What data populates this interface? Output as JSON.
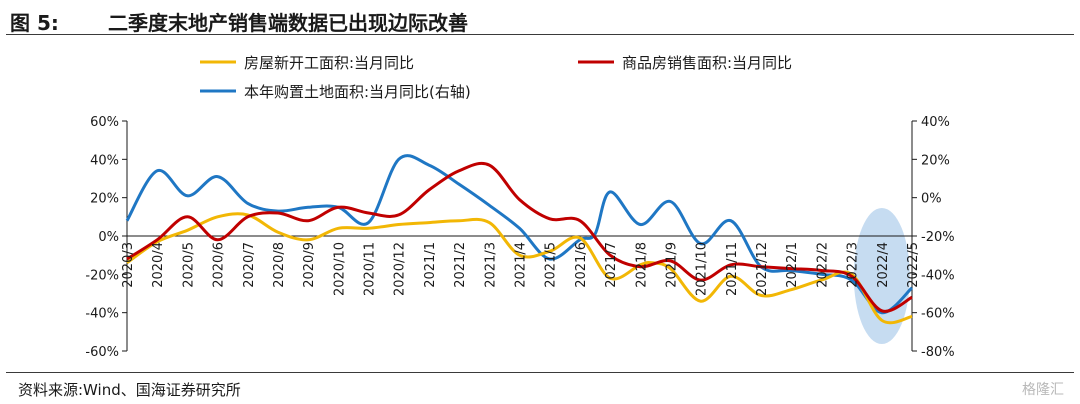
{
  "header": {
    "figure_label": "图 5:",
    "figure_title": "二季度末地产销售端数据已出现边际改善"
  },
  "footer": {
    "source": "资料来源:Wind、国海证券研究所",
    "watermark": "格隆汇"
  },
  "chart_data": {
    "type": "line",
    "categories": [
      "2020/3",
      "2020/4",
      "2020/5",
      "2020/6",
      "2020/7",
      "2020/8",
      "2020/9",
      "2020/10",
      "2020/11",
      "2020/12",
      "2021/1",
      "2021/2",
      "2021/3",
      "2021/4",
      "2021/5",
      "2021/6",
      "2021/7",
      "2021/8",
      "2021/9",
      "2021/10",
      "2021/11",
      "2021/12",
      "2022/1",
      "2022/2",
      "2022/3",
      "2022/4",
      "2022/5"
    ],
    "left_axis": {
      "min": -60,
      "max": 60,
      "step": 20,
      "unit": "%"
    },
    "right_axis": {
      "min": -80,
      "max": 40,
      "step": 20,
      "unit": "%"
    },
    "legend": [
      {
        "name": "房屋新开工面积:当月同比",
        "color": "#f2b705"
      },
      {
        "name": "商品房销售面积:当月同比",
        "color": "#c00000"
      },
      {
        "name": "本年购置土地面积:当月同比(右轴)",
        "color": "#1f77c4"
      }
    ],
    "series": [
      {
        "name": "房屋新开工面积:当月同比",
        "color": "#f2b705",
        "axis": "left",
        "x": [
          0,
          1,
          2,
          3,
          4,
          5,
          6,
          7,
          8,
          9,
          10,
          11,
          12,
          13,
          14,
          15,
          16,
          17,
          17.4,
          18,
          19,
          20,
          21,
          22,
          23,
          24,
          25,
          26
        ],
        "values": [
          -14,
          -3,
          3,
          10,
          11,
          2,
          -2,
          4,
          4,
          6,
          7,
          8,
          7,
          -10,
          -8,
          -1,
          -22,
          -15,
          -14,
          -17,
          -34,
          -21,
          -31,
          -28,
          -23,
          -20,
          -44,
          -42
        ]
      },
      {
        "name": "商品房销售面积:当月同比",
        "color": "#c00000",
        "axis": "left",
        "x": [
          0,
          1,
          2,
          3,
          4,
          5,
          6,
          7,
          8,
          9,
          10,
          11,
          12,
          13,
          14,
          15,
          16,
          17,
          18,
          19,
          20,
          21,
          22,
          23,
          24,
          25,
          26
        ],
        "values": [
          -12,
          -2,
          10,
          -2,
          10,
          12,
          8,
          15,
          12,
          11,
          24,
          34,
          37,
          19,
          9,
          8,
          -10,
          -16,
          -13,
          -23,
          -15,
          -16,
          -17,
          -18,
          -21,
          -39,
          -32
        ]
      },
      {
        "name": "本年购置土地面积:当月同比(右轴)",
        "color": "#1f77c4",
        "axis": "right",
        "x": [
          0,
          1,
          2,
          3,
          4,
          5,
          6,
          7,
          8,
          9,
          10,
          11,
          12,
          13,
          14,
          15,
          15.5,
          16,
          17,
          18,
          19,
          20,
          21,
          22,
          23,
          24,
          25,
          26
        ],
        "values": [
          -12,
          14,
          1,
          11,
          -3,
          -7,
          -5,
          -5,
          -13,
          20,
          17,
          7,
          -4,
          -16,
          -32,
          -22,
          -19,
          3,
          -14,
          -2,
          -24,
          -12,
          -36,
          -38,
          -40,
          -43,
          -60,
          -47
        ]
      }
    ],
    "highlight": {
      "category": "2022/4",
      "shape": "ellipse"
    }
  }
}
